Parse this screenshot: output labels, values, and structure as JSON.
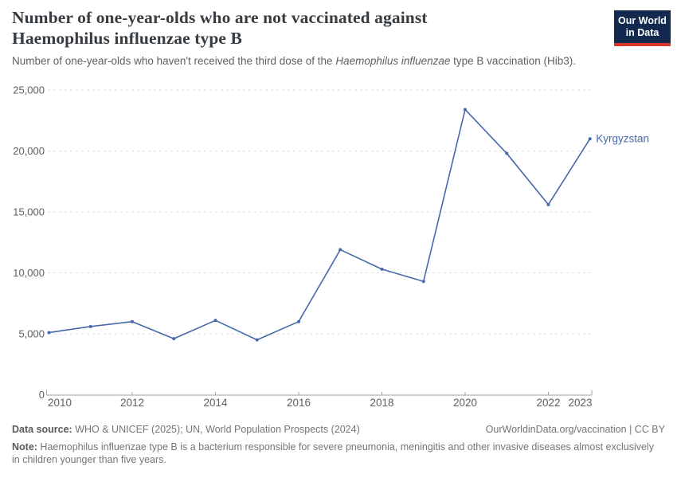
{
  "header": {
    "title_line1": "Number of one-year-olds who are not vaccinated against",
    "title_line2": "Haemophilus influenzae type B",
    "subtitle_pre": "Number of one-year-olds who haven't received the third dose of the ",
    "subtitle_italic": "Haemophilus influenzae",
    "subtitle_post": " type B vaccination (Hib3)."
  },
  "logo": {
    "line1": "Our World",
    "line2": "in Data",
    "bg_color": "#13294e",
    "stripe_color": "#dc352b",
    "text_color": "#ffffff"
  },
  "chart_data": {
    "type": "line",
    "title": "Number of one-year-olds who are not vaccinated against Haemophilus influenzae type B",
    "subtitle": "Number of one-year-olds who haven't received the third dose of the Haemophilus influenzae type B vaccination (Hib3).",
    "x": [
      2010,
      2011,
      2012,
      2013,
      2014,
      2015,
      2016,
      2017,
      2018,
      2019,
      2020,
      2021,
      2022,
      2023
    ],
    "series": [
      {
        "name": "Kyrgyzstan",
        "color": "#4768ab",
        "values": [
          5100,
          5600,
          6000,
          4600,
          6100,
          4500,
          6000,
          11900,
          10300,
          9300,
          23400,
          19800,
          15600,
          21000
        ]
      }
    ],
    "ylim": [
      0,
      25000
    ],
    "yticks": [
      0,
      5000,
      10000,
      15000,
      20000,
      25000
    ],
    "ytick_labels": [
      "0",
      "5,000",
      "10,000",
      "15,000",
      "20,000",
      "25,000"
    ],
    "xticks": [
      2010,
      2012,
      2014,
      2016,
      2018,
      2020,
      2022,
      2023
    ],
    "grid": "horizontal-dashed",
    "legend": "entity label at right end of line",
    "colors": {
      "grid": "#dcdcdc",
      "axis": "#a0a0a0",
      "tick_text": "#606060"
    }
  },
  "footer": {
    "source_label": "Data source:",
    "source_text": " WHO & UNICEF (2025); UN, World Population Prospects (2024)",
    "rights": "OurWorldinData.org/vaccination | CC BY",
    "note_label": "Note:",
    "note_text": " Haemophilus influenzae type B is a bacterium responsible for severe pneumonia, meningitis and other invasive diseases almost exclusively in children younger than five years."
  }
}
